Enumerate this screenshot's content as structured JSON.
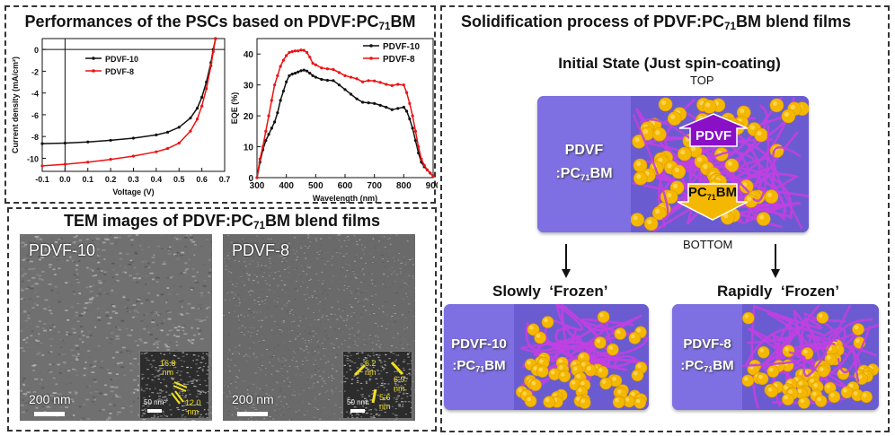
{
  "panels": {
    "performance": {
      "title_pre": "Performances of the PSCs based on PDVF:PC",
      "title_sub": "71",
      "title_post": "BM"
    },
    "tem": {
      "title_pre": "TEM images of PDVF:PC",
      "title_sub": "71",
      "title_post": "BM  blend  films",
      "images": [
        {
          "label": "PDVF-10",
          "scale": "200 nm",
          "inset_scale": "50 nm",
          "inset_annotations": [
            {
              "value": "16.8",
              "unit": "nm"
            },
            {
              "value": "12.0",
              "unit": "nm"
            }
          ]
        },
        {
          "label": "PDVF-8",
          "scale": "200 nm",
          "inset_scale": "50 nm",
          "inset_annotations": [
            {
              "value": "6.2",
              "unit": "nm"
            },
            {
              "value": "6.9",
              "unit": "nm"
            },
            {
              "value": "5.6",
              "unit": "nm"
            }
          ]
        }
      ]
    },
    "solidification": {
      "title_pre": "Solidification  process  of  PDVF:PC",
      "title_sub": "71",
      "title_post": "BM  blend  films",
      "initial_state": "Initial State (Just spin-coating)",
      "top_label": "TOP",
      "bottom_label": "BOTTOM",
      "initial_film": {
        "line1": "PDVF",
        "line2_pre": ":PC",
        "line2_sub": "71",
        "line2_post": "BM"
      },
      "arrow_up_label": "PDVF",
      "arrow_down_pre": "PC",
      "arrow_down_sub": "71",
      "arrow_down_post": "BM",
      "slow": {
        "label": "Slowly  ‘Frozen’",
        "line1": "PDVF-10",
        "line2_pre": ":PC",
        "line2_sub": "71",
        "line2_post": "BM"
      },
      "rapid": {
        "label": "Rapidly  ‘Frozen’",
        "line1": "PDVF-8",
        "line2_pre": ":PC",
        "line2_sub": "71",
        "line2_post": "BM"
      }
    }
  },
  "colors": {
    "pdvf10": "#111111",
    "pdvf8": "#ee1111",
    "film": "#7b6ee0",
    "polymer": "#c040e0",
    "fullerene": "#f5b800",
    "pdvf_arrow": "#8a10c8",
    "pcbm_arrow": "#f5b800"
  },
  "chart_data": [
    {
      "type": "line",
      "title": "",
      "xlabel": "Voltage (V)",
      "ylabel": "Current density (mA/cm²)",
      "xlim": [
        -0.1,
        0.7
      ],
      "ylim": [
        -11.2,
        1.0
      ],
      "xticks": [
        "-0.1",
        "0.0",
        "0.1",
        "0.2",
        "0.3",
        "0.4",
        "0.5",
        "0.6",
        "0.7"
      ],
      "yticks": [
        "0",
        "-2",
        "-4",
        "-6",
        "-8",
        "-10"
      ],
      "legend_position": "upper-left",
      "x": [
        -0.1,
        0.0,
        0.1,
        0.2,
        0.3,
        0.4,
        0.45,
        0.5,
        0.55,
        0.58,
        0.6,
        0.62,
        0.64,
        0.65,
        0.66
      ],
      "series": [
        {
          "name": "PDVF-10",
          "values": [
            -8.65,
            -8.6,
            -8.5,
            -8.35,
            -8.15,
            -7.85,
            -7.6,
            -7.15,
            -6.3,
            -5.4,
            -4.4,
            -3.0,
            -1.2,
            0.0,
            1.0
          ]
        },
        {
          "name": "PDVF-8",
          "values": [
            -10.7,
            -10.55,
            -10.35,
            -10.1,
            -9.8,
            -9.4,
            -9.1,
            -8.6,
            -7.5,
            -6.4,
            -5.2,
            -3.6,
            -1.5,
            -0.2,
            1.0
          ]
        }
      ]
    },
    {
      "type": "line",
      "title": "",
      "xlabel": "Wavelength (nm)",
      "ylabel": "EQE (%)",
      "xlim": [
        300,
        900
      ],
      "ylim": [
        0,
        45
      ],
      "xticks": [
        "300",
        "400",
        "500",
        "600",
        "700",
        "800",
        "900"
      ],
      "yticks": [
        "0",
        "10",
        "20",
        "30",
        "40"
      ],
      "legend_position": "top-right",
      "x": [
        300,
        310,
        320,
        330,
        340,
        350,
        360,
        370,
        380,
        390,
        400,
        410,
        420,
        430,
        440,
        450,
        460,
        470,
        480,
        490,
        500,
        520,
        540,
        560,
        580,
        600,
        620,
        640,
        660,
        680,
        700,
        720,
        740,
        760,
        780,
        800,
        810,
        820,
        830,
        840,
        850,
        860,
        870,
        880,
        890,
        900
      ],
      "series": [
        {
          "name": "PDVF-10",
          "values": [
            0,
            5,
            9,
            12,
            14,
            16,
            18,
            21,
            25,
            28,
            31,
            33,
            33.5,
            33.8,
            34.2,
            34.6,
            34.8,
            34.5,
            33.8,
            33,
            32.5,
            31.8,
            31.5,
            31.4,
            30,
            28.5,
            27,
            25.5,
            24.4,
            24.2,
            24,
            23.4,
            22.8,
            22,
            22.4,
            22.8,
            21.5,
            19,
            16,
            12,
            8,
            5,
            3.5,
            2.5,
            1.5,
            0.5
          ]
        },
        {
          "name": "PDVF-8",
          "values": [
            0,
            6,
            10,
            15,
            20,
            25,
            30,
            33,
            36,
            38,
            39.5,
            40.5,
            40.8,
            41,
            41,
            41.3,
            41.2,
            40.5,
            39,
            37,
            36.5,
            35.5,
            35.2,
            35,
            34,
            33,
            32.5,
            32,
            31,
            31.4,
            31.3,
            30.8,
            30.2,
            29.8,
            30.2,
            30,
            27.5,
            24,
            20,
            15,
            10,
            6,
            4,
            2.5,
            1.5,
            0.5
          ]
        }
      ]
    }
  ]
}
